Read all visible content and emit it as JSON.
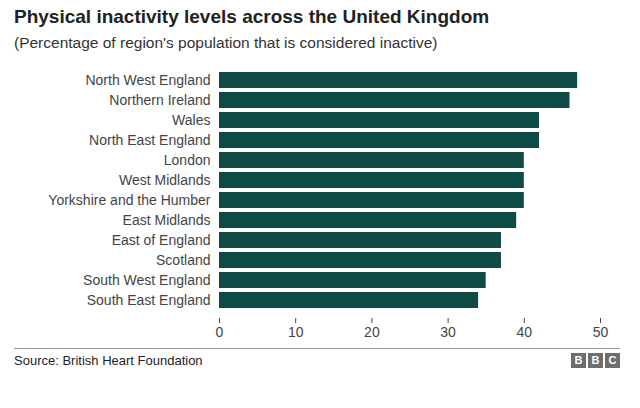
{
  "chart_data": {
    "type": "bar",
    "orientation": "horizontal",
    "title": "Physical inactivity levels across the United Kingdom",
    "subtitle": "(Percentage of region's population that is considered inactive)",
    "categories": [
      "North West England",
      "Northern Ireland",
      "Wales",
      "North East England",
      "London",
      "West Midlands",
      "Yorkshire and the Humber",
      "East Midlands",
      "East of England",
      "Scotland",
      "South West England",
      "South East England"
    ],
    "values": [
      47,
      46,
      42,
      42,
      40,
      40,
      40,
      39,
      37,
      37,
      35,
      34
    ],
    "color": "#0f4a47",
    "xlim": [
      0,
      50
    ],
    "xticks": [
      0,
      10,
      20,
      30,
      40,
      50
    ],
    "grid": false,
    "source": "Source: British Heart Foundation",
    "brand": "BBC"
  }
}
